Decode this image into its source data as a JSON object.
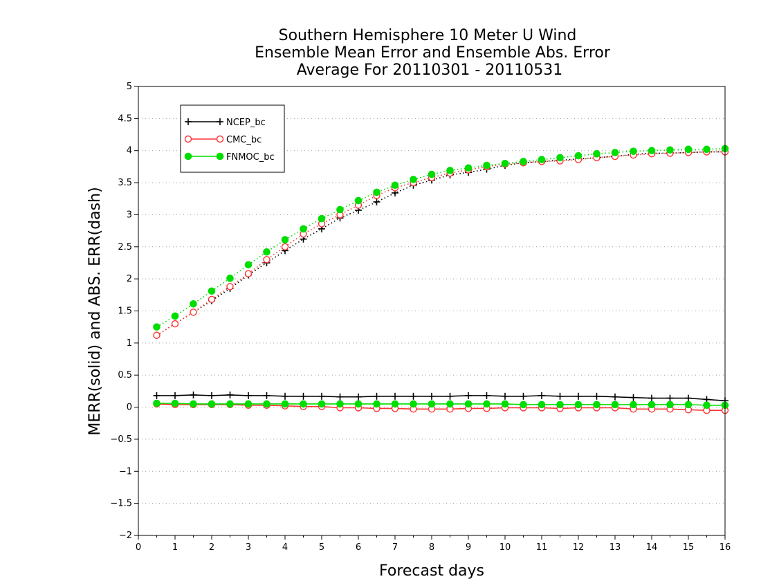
{
  "chart_data": {
    "type": "line",
    "title": [
      "Southern Hemisphere 10 Meter U Wind",
      "Ensemble Mean Error and Ensemble Abs. Error",
      "Average For 20110301 - 20110531"
    ],
    "xlabel": "Forecast days",
    "ylabel": "MERR(solid) and ABS. ERR(dash)",
    "xlim": [
      0,
      16
    ],
    "ylim": [
      -2,
      5
    ],
    "xticks": [
      "0",
      "1",
      "2",
      "3",
      "4",
      "5",
      "6",
      "7",
      "8",
      "9",
      "10",
      "11",
      "12",
      "13",
      "14",
      "15",
      "16"
    ],
    "yticks": [
      "−2",
      "−1.5",
      "−1",
      "−0.5",
      "0",
      "0.5",
      "1",
      "1.5",
      "2",
      "2.5",
      "3",
      "3.5",
      "4",
      "4.5",
      "5"
    ],
    "ytick_values": [
      -2,
      -1.5,
      -1,
      -0.5,
      0,
      0.5,
      1,
      1.5,
      2,
      2.5,
      3,
      3.5,
      4,
      4.5,
      5
    ],
    "grid": "horizontal dotted",
    "legend_position": "top-left",
    "x": [
      0.5,
      1,
      1.5,
      2,
      2.5,
      3,
      3.5,
      4,
      4.5,
      5,
      5.5,
      6,
      6.5,
      7,
      7.5,
      8,
      8.5,
      9,
      9.5,
      10,
      10.5,
      11,
      11.5,
      12,
      12.5,
      13,
      13.5,
      14,
      14.5,
      15,
      15.5,
      16
    ],
    "series": [
      {
        "name": "NCEP_bc",
        "color": "#000000",
        "marker": "plus",
        "merr": [
          0.18,
          0.18,
          0.19,
          0.18,
          0.19,
          0.18,
          0.18,
          0.17,
          0.17,
          0.17,
          0.16,
          0.16,
          0.17,
          0.17,
          0.17,
          0.17,
          0.17,
          0.18,
          0.18,
          0.17,
          0.17,
          0.18,
          0.17,
          0.17,
          0.17,
          0.16,
          0.15,
          0.14,
          0.14,
          0.14,
          0.12,
          0.1
        ],
        "abs_err": [
          1.12,
          1.3,
          1.48,
          1.66,
          1.85,
          2.06,
          2.25,
          2.44,
          2.62,
          2.78,
          2.95,
          3.07,
          3.2,
          3.34,
          3.46,
          3.54,
          3.62,
          3.66,
          3.71,
          3.77,
          3.81,
          3.83,
          3.85,
          3.87,
          3.89,
          3.91,
          3.94,
          3.96,
          3.96,
          3.97,
          3.98,
          3.98
        ]
      },
      {
        "name": "CMC_bc",
        "color": "#ff3333",
        "marker": "circle-open",
        "merr": [
          0.05,
          0.04,
          0.04,
          0.04,
          0.04,
          0.03,
          0.03,
          0.02,
          0.01,
          0.01,
          -0.01,
          -0.01,
          -0.02,
          -0.02,
          -0.03,
          -0.03,
          -0.03,
          -0.02,
          -0.02,
          -0.01,
          -0.01,
          -0.01,
          -0.02,
          -0.01,
          -0.01,
          -0.01,
          -0.03,
          -0.03,
          -0.03,
          -0.04,
          -0.05,
          -0.05
        ],
        "abs_err": [
          1.12,
          1.3,
          1.48,
          1.68,
          1.88,
          2.08,
          2.3,
          2.5,
          2.7,
          2.86,
          3.0,
          3.15,
          3.3,
          3.42,
          3.5,
          3.58,
          3.65,
          3.7,
          3.75,
          3.79,
          3.81,
          3.83,
          3.84,
          3.86,
          3.89,
          3.91,
          3.93,
          3.95,
          3.96,
          3.97,
          3.98,
          3.98
        ]
      },
      {
        "name": "FNMOC_bc",
        "color": "#00dd00",
        "marker": "circle-filled",
        "merr": [
          0.06,
          0.06,
          0.05,
          0.05,
          0.05,
          0.05,
          0.05,
          0.05,
          0.05,
          0.05,
          0.05,
          0.05,
          0.05,
          0.05,
          0.05,
          0.05,
          0.05,
          0.05,
          0.05,
          0.05,
          0.04,
          0.04,
          0.04,
          0.04,
          0.04,
          0.04,
          0.04,
          0.04,
          0.04,
          0.04,
          0.03,
          0.03
        ],
        "abs_err": [
          1.25,
          1.42,
          1.61,
          1.81,
          2.01,
          2.22,
          2.42,
          2.61,
          2.78,
          2.94,
          3.08,
          3.22,
          3.35,
          3.46,
          3.55,
          3.63,
          3.69,
          3.73,
          3.77,
          3.8,
          3.83,
          3.86,
          3.89,
          3.92,
          3.95,
          3.97,
          3.99,
          4.0,
          4.01,
          4.02,
          4.02,
          4.03
        ]
      }
    ]
  }
}
